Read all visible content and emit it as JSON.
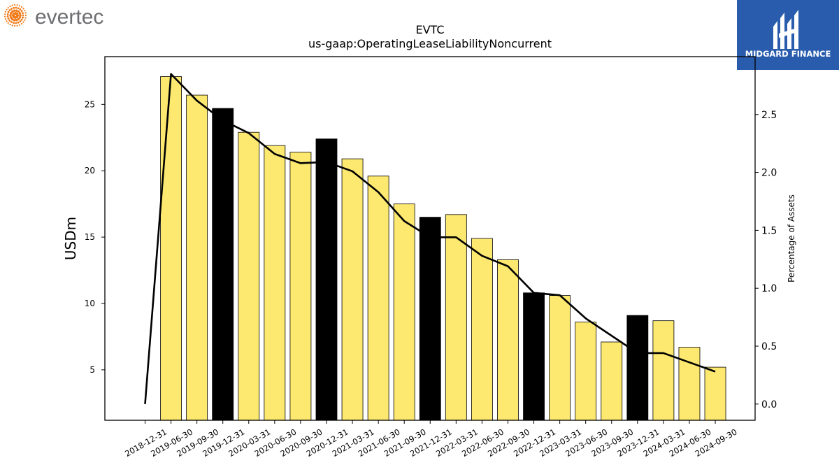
{
  "brand": {
    "left_logo_text": "evertec",
    "right_logo_text": "MIDGARD FINANCE",
    "right_logo_bg": "#2a5cad",
    "left_logo_dot_color": "#f07c1c"
  },
  "chart_data": {
    "type": "bar",
    "title": "EVTC",
    "subtitle": "us-gaap:OperatingLeaseLiabilityNoncurrent",
    "ylabel": "USDm",
    "y2label": "Percentage of Assets",
    "ylim": [
      1.2,
      28.6
    ],
    "y2lim": [
      -0.14,
      3.0
    ],
    "yticks": [
      5,
      10,
      15,
      20,
      25
    ],
    "y2ticks": [
      0.0,
      0.5,
      1.0,
      1.5,
      2.0,
      2.5
    ],
    "grid": false,
    "bar_colors": {
      "quarter": "#fde970",
      "year_end": "#000000"
    },
    "categories": [
      "2018-12-31",
      "2019-06-30",
      "2019-09-30",
      "2019-12-31",
      "2020-03-31",
      "2020-06-30",
      "2020-09-30",
      "2020-12-31",
      "2021-03-31",
      "2021-06-30",
      "2021-09-30",
      "2021-12-31",
      "2022-03-31",
      "2022-06-30",
      "2022-09-30",
      "2022-12-31",
      "2023-03-31",
      "2023-06-30",
      "2023-09-30",
      "2023-12-31",
      "2024-03-31",
      "2024-06-30",
      "2024-09-30"
    ],
    "series": [
      {
        "kind": "bar",
        "values": [
          null,
          27.1,
          25.7,
          24.7,
          22.9,
          21.9,
          21.4,
          22.4,
          20.9,
          19.6,
          17.5,
          16.5,
          16.7,
          14.9,
          13.3,
          10.8,
          10.6,
          8.6,
          7.1,
          9.1,
          8.7,
          6.7,
          5.2
        ],
        "year_end": [
          false,
          false,
          false,
          true,
          false,
          false,
          false,
          true,
          false,
          false,
          false,
          true,
          false,
          false,
          false,
          true,
          false,
          false,
          false,
          true,
          false,
          false,
          false
        ]
      },
      {
        "kind": "line",
        "axis": "right",
        "values": [
          0.0,
          2.85,
          2.62,
          2.45,
          2.34,
          2.16,
          2.08,
          2.09,
          2.01,
          1.83,
          1.58,
          1.44,
          1.44,
          1.28,
          1.19,
          0.96,
          0.94,
          0.74,
          0.59,
          0.44,
          0.44,
          0.36,
          0.28
        ]
      }
    ]
  }
}
